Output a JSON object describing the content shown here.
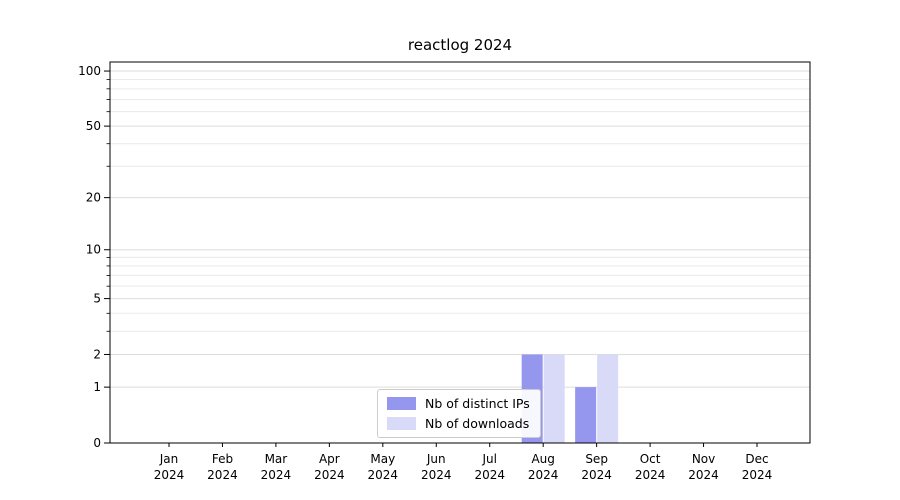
{
  "chart_data": {
    "type": "bar",
    "title": "reactlog 2024",
    "categories": [
      "Jan 2024",
      "Feb 2024",
      "Mar 2024",
      "Apr 2024",
      "May 2024",
      "Jun 2024",
      "Jul 2024",
      "Aug 2024",
      "Sep 2024",
      "Oct 2024",
      "Nov 2024",
      "Dec 2024"
    ],
    "series": [
      {
        "name": "Nb of distinct IPs",
        "color": "#9596ee",
        "values": [
          0,
          0,
          0,
          0,
          0,
          0,
          0,
          2,
          1,
          0,
          0,
          0
        ]
      },
      {
        "name": "Nb of downloads",
        "color": "#d9daf8",
        "values": [
          0,
          0,
          0,
          0,
          0,
          0,
          0,
          2,
          2,
          0,
          0,
          0
        ]
      }
    ],
    "yscale": "log1p",
    "y_max": 112,
    "yticks": [
      0,
      1,
      2,
      5,
      10,
      20,
      50,
      100
    ],
    "grid_values": [
      1,
      2,
      3,
      4,
      5,
      6,
      7,
      8,
      9,
      10,
      20,
      30,
      40,
      50,
      60,
      70,
      80,
      90,
      100
    ],
    "grid": "horizontal",
    "legend_position": "bottom-center",
    "xlabel": "",
    "ylabel": ""
  }
}
